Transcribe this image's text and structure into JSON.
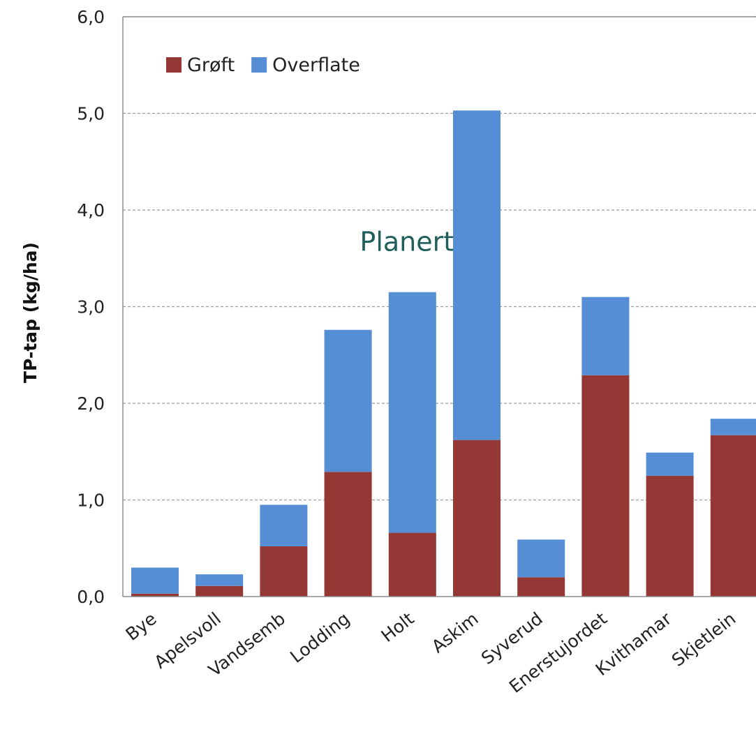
{
  "chart_data": {
    "type": "bar",
    "stacked": true,
    "title": "",
    "xlabel": "",
    "ylabel": "TP-tap (kg/ha)",
    "ylim": [
      0,
      6
    ],
    "yticks": [
      "0,0",
      "1,0",
      "2,0",
      "3,0",
      "4,0",
      "5,0",
      "6,0"
    ],
    "grid": true,
    "legend_position": "top-left",
    "categories": [
      "Bye",
      "Apelsvoll",
      "Vandsemb",
      "Lodding",
      "Holt",
      "Askim",
      "Syverud",
      "Enerstujordet",
      "Kvithamar",
      "Skjetlein"
    ],
    "series": [
      {
        "name": "Grøft",
        "color": "#953735",
        "values": [
          0.03,
          0.11,
          0.52,
          1.29,
          0.66,
          1.62,
          0.2,
          2.29,
          1.25,
          1.67
        ]
      },
      {
        "name": "Overflate",
        "color": "#558ED5",
        "values": [
          0.27,
          0.12,
          0.43,
          1.47,
          2.49,
          3.41,
          0.39,
          0.81,
          0.24,
          0.17
        ]
      }
    ],
    "annotations": [
      {
        "text": "Planert",
        "color": "#1F5F5A",
        "category": "Holt",
        "y": 3.67
      }
    ]
  }
}
